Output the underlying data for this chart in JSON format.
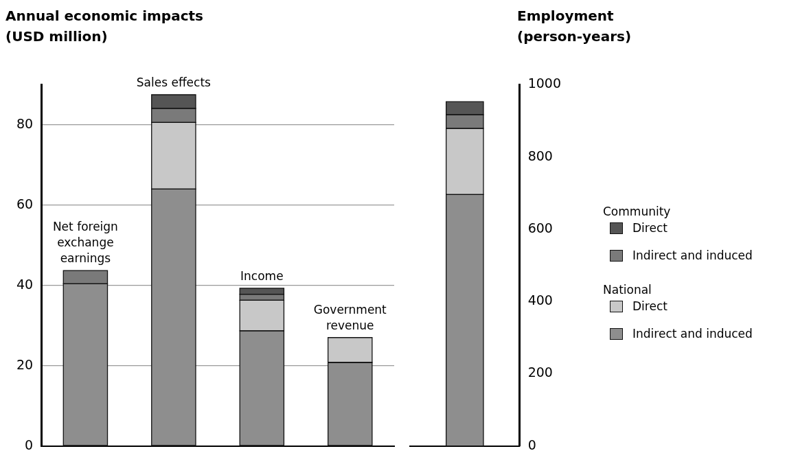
{
  "chart_data": [
    {
      "type": "bar",
      "ylabel": "Annual economic impacts (USD million)",
      "categories": [
        "Net foreign exchange earnings",
        "Sales effects",
        "Income",
        "Government revenue"
      ],
      "stacked": true,
      "series": [
        {
          "name": "Indirect and induced",
          "color": "#8e8e8e",
          "values": [
            40.4,
            64.0,
            28.7,
            20.8
          ]
        },
        {
          "name": "Direct",
          "color": "#c8c8c8",
          "values": [
            null,
            16.6,
            7.6,
            6.2
          ]
        },
        {
          "name": "Indirect and induced",
          "color": "#7a7a7a",
          "values": [
            3.3,
            3.5,
            1.5,
            null
          ]
        },
        {
          "name": "Direct",
          "color": "#555555",
          "values": [
            null,
            3.4,
            1.5,
            null
          ]
        }
      ],
      "ylim": [
        0,
        90
      ],
      "yticks": [
        0,
        20,
        40,
        60,
        80
      ],
      "grid": "y",
      "tick_labels": "y",
      "legend": "right",
      "annotations": [
        "Community",
        "National"
      ]
    },
    {
      "type": "bar",
      "ylabel": "Employment (person-years)",
      "categories": [
        null
      ],
      "stacked": true,
      "series": [
        {
          "color": "#8e8e8e",
          "values": [
            696
          ]
        },
        {
          "color": "#c8c8c8",
          "values": [
            183
          ]
        },
        {
          "color": "#7a7a7a",
          "values": [
            38
          ]
        },
        {
          "color": "#555555",
          "values": [
            36
          ]
        }
      ],
      "ylim": [
        0,
        1000
      ],
      "yticks": [
        0,
        200,
        400,
        600,
        800,
        1000
      ],
      "tick_labels": "y"
    }
  ]
}
